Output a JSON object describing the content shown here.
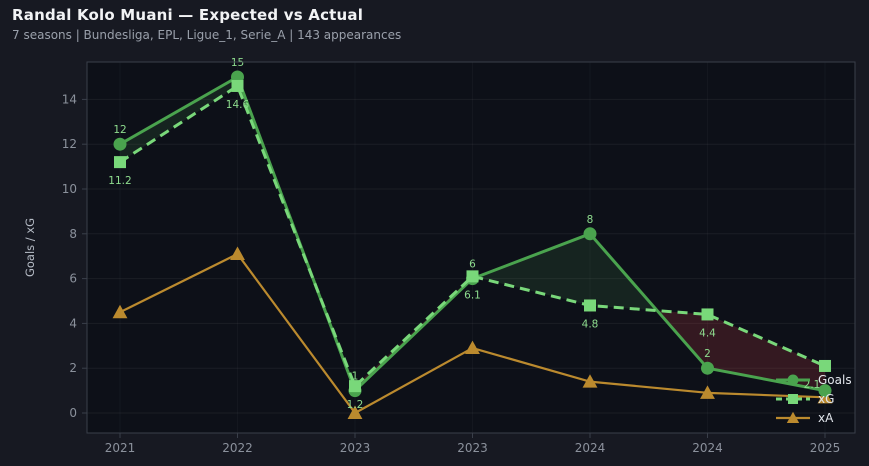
{
  "header": {
    "title": "Randal Kolo Muani — Expected vs Actual",
    "subtitle": "7 seasons | Bundesliga, EPL, Ligue_1, Serie_A | 143 appearances"
  },
  "colors": {
    "page_bg": "#171922",
    "plot_bg": "#0d1018",
    "plot_border": "#3a3f4a",
    "grid": "rgba(255,255,255,0.06)",
    "tick_text": "#8b919c",
    "axis_title_text": "#b6bcc6",
    "legend_text": "#e2e6ec",
    "value_label": "#8edc8e",
    "goals": "#4aa34e",
    "xg": "#79d87a",
    "xa": "#bb8a2e",
    "fill_overperform": "rgba(105,220,105,0.10)",
    "fill_underperform": "rgba(210,65,70,0.20)"
  },
  "chart_data": {
    "type": "line",
    "title": "Randal Kolo Muani — Expected vs Actual",
    "xlabel": "",
    "ylabel": "Goals / xG",
    "x_tick_labels": [
      "2021",
      "2022",
      "2023",
      "2023",
      "2024",
      "2024",
      "2025"
    ],
    "y_ticks": [
      0,
      2,
      4,
      6,
      8,
      10,
      12,
      14
    ],
    "ylim": [
      -0.9,
      15.7
    ],
    "grid": "on",
    "legend_position": "lower right",
    "series": [
      {
        "name": "Goals",
        "style": "solid",
        "marker": "circle",
        "color_key": "goals",
        "values": [
          12,
          15,
          1,
          6,
          8,
          2,
          1
        ],
        "point_labels": [
          "12",
          "15",
          "1",
          "6",
          "8",
          "2",
          ""
        ]
      },
      {
        "name": "xG",
        "style": "dashed",
        "marker": "square",
        "color_key": "xg",
        "values": [
          11.2,
          14.6,
          1.2,
          6.1,
          4.8,
          4.4,
          2.1
        ],
        "point_labels": [
          "11.2",
          "14.6",
          "1.2",
          "6.1",
          "4.8",
          "4.4",
          "2.1"
        ]
      },
      {
        "name": "xA",
        "style": "solid",
        "marker": "triangle",
        "color_key": "xa",
        "values": [
          4.5,
          7.1,
          0,
          2.9,
          1.4,
          0.9,
          0.7
        ],
        "point_labels": [
          "",
          "",
          "",
          "",
          "",
          "",
          ""
        ]
      }
    ],
    "fill_between": {
      "between": [
        "Goals",
        "xG"
      ],
      "overperform_color_key": "fill_overperform",
      "underperform_color_key": "fill_underperform"
    }
  }
}
